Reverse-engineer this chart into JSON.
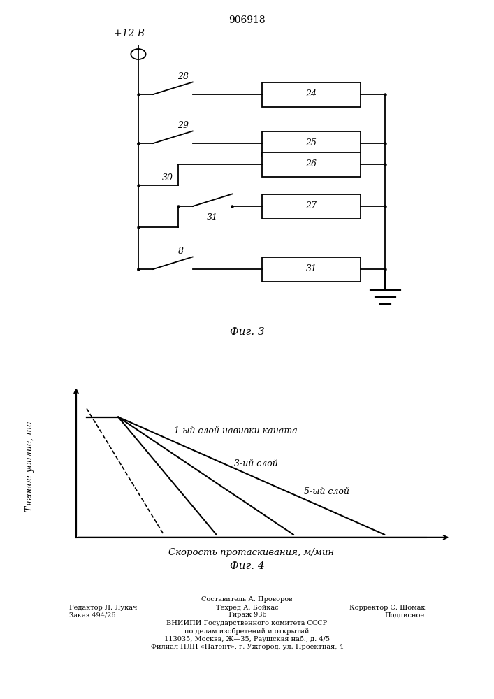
{
  "title_patent": "906918",
  "fig3_label": "Фиг. 3",
  "fig4_label": "Фиг. 4",
  "power_label": "+12 В",
  "graph_ylabel": "Тяговое усилие, тс",
  "graph_xlabel": "Скорость протаскивания, м/мин",
  "line_labels": [
    "1-ый слой навивки каната",
    "3-ий слой",
    "5-ый слой"
  ],
  "bg_color": "#ffffff",
  "line_color": "#000000",
  "footer_rows": [
    [
      "center",
      0.5,
      "Составитель А. Проворов"
    ],
    [
      "left",
      0.14,
      "Редактор Л. Лукач"
    ],
    [
      "center",
      0.5,
      "Техред А. Бойкас"
    ],
    [
      "right",
      0.86,
      "Корректор С. Шомак"
    ],
    [
      "left",
      0.14,
      "Заказ 494/26"
    ],
    [
      "center",
      0.5,
      "Тираж 936"
    ],
    [
      "right",
      0.86,
      "Подписное"
    ],
    [
      "center",
      0.5,
      "ВНИИПИ Государственного комитета СССР"
    ],
    [
      "center",
      0.5,
      "по делам изобретений и открытий"
    ],
    [
      "center",
      0.5,
      "113035, Москва, Ж—35, Раушская наб., д. 4/5"
    ],
    [
      "center",
      0.5,
      "Филиал ПЛП «Патент», г. Ужгород, ул. Проектная, 4"
    ]
  ]
}
